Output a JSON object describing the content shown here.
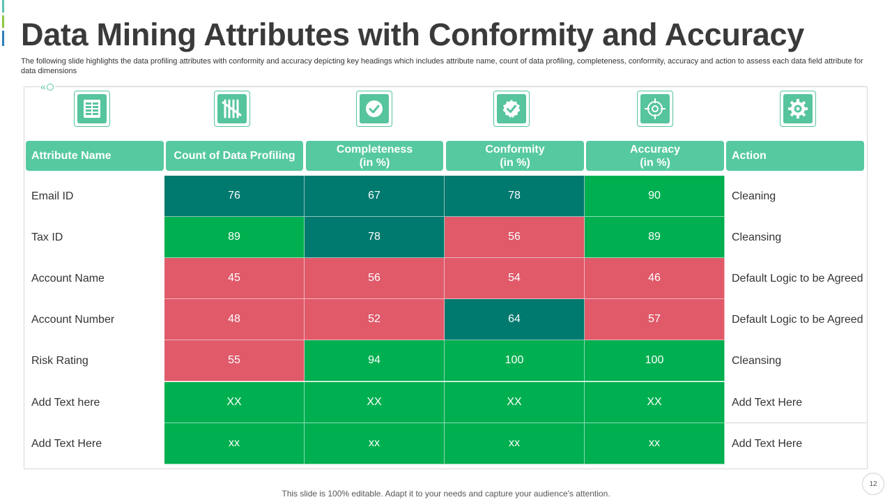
{
  "title": "Data Mining Attributes with Conformity and Accuracy",
  "subtitle": "The following slide highlights the data profiling attributes with conformity and accuracy depicting key headings which includes attribute name, count of data profiling, completeness, conformity, accuracy and action to assess each data field attribute for data dimensions",
  "icons": [
    "data-table-icon",
    "tally-count-icon",
    "checkmark-circle-icon",
    "checkmark-badge-icon",
    "target-icon",
    "gear-icon"
  ],
  "headers": {
    "attribute": "Attribute Name",
    "count": "Count of Data Profiling",
    "completeness": "Completeness\n(in %)",
    "conformity": "Conformity\n(in %)",
    "accuracy": "Accuracy\n(in %)",
    "action": "Action"
  },
  "colors": {
    "header": "#56C9A0",
    "teal": "#00796F",
    "green": "#00AF50",
    "red": "#E05A6A"
  },
  "rows": [
    {
      "attribute": "Email ID",
      "count": "76",
      "completeness": "67",
      "conformity": "78",
      "accuracy": "90",
      "action": "Cleaning",
      "colors": [
        "teal",
        "teal",
        "teal",
        "green"
      ]
    },
    {
      "attribute": "Tax ID",
      "count": "89",
      "completeness": "78",
      "conformity": "56",
      "accuracy": "89",
      "action": "Cleansing",
      "colors": [
        "green",
        "teal",
        "red",
        "green"
      ]
    },
    {
      "attribute": "Account Name",
      "count": "45",
      "completeness": "56",
      "conformity": "54",
      "accuracy": "46",
      "action": "Default Logic to be Agreed",
      "colors": [
        "red",
        "red",
        "red",
        "red"
      ]
    },
    {
      "attribute": "Account Number",
      "count": "48",
      "completeness": "52",
      "conformity": "64",
      "accuracy": "57",
      "action": "Default Logic to be Agreed",
      "colors": [
        "red",
        "red",
        "teal",
        "red"
      ]
    },
    {
      "attribute": "Risk Rating",
      "count": "55",
      "completeness": "94",
      "conformity": "100",
      "accuracy": "100",
      "action": "Cleansing",
      "colors": [
        "red",
        "green",
        "green",
        "green"
      ]
    },
    {
      "attribute": "Add Text here",
      "count": "XX",
      "completeness": "XX",
      "conformity": "XX",
      "accuracy": "XX",
      "action": "Add Text Here",
      "colors": [
        "green",
        "green",
        "green",
        "green"
      ]
    },
    {
      "attribute": "Add Text Here",
      "count": "xx",
      "completeness": "xx",
      "conformity": "xx",
      "accuracy": "xx",
      "action": "Add Text Here",
      "colors": [
        "green",
        "green",
        "green",
        "green"
      ]
    }
  ],
  "footer": "This slide is 100% editable. Adapt it to your needs and capture your audience's attention.",
  "page_number": "12"
}
